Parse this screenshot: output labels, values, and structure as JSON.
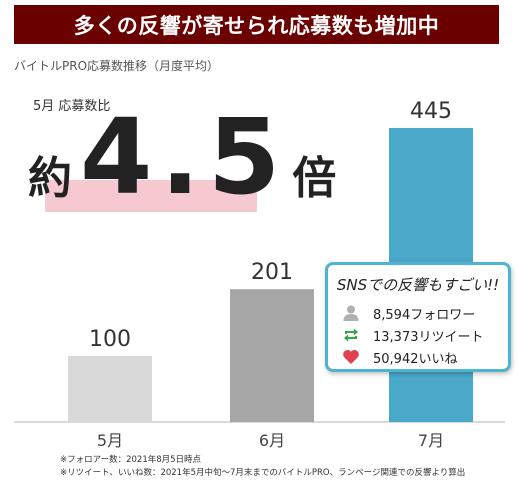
{
  "banner": {
    "title": "多くの反響が寄せられ応募数も増加中"
  },
  "subtitle": "バイトルPRO応募数推移（月度平均）",
  "comparison": {
    "label": "5月 応募数比",
    "prefix": "約",
    "value": "4.5",
    "suffix": "倍"
  },
  "sns": {
    "title": "SNSでの反響もすごい!!",
    "followers": "8,594フォロワー",
    "retweets": "13,373リツイート",
    "likes": "50,942いいね",
    "icons": [
      "person-icon",
      "retweet-icon",
      "heart-icon"
    ],
    "icon_colors": {
      "person": "#b0b0b0",
      "retweet": "#2eaa4a",
      "heart": "#e0404f"
    }
  },
  "chart_data": {
    "type": "bar",
    "categories": [
      "5月",
      "6月",
      "7月"
    ],
    "values": [
      100,
      201,
      445
    ],
    "value_labels": [
      "100",
      "201",
      "445"
    ],
    "ylim": [
      0,
      445
    ],
    "colors": [
      "#d9d9d9",
      "#a6a6a6",
      "#4aa8c9"
    ],
    "grid": false
  },
  "footnotes": [
    "※フォロアー数：2021年8月5日時点",
    "※リツイート、いいね数：2021年5月中旬～7月末までのバイトルPRO、ランページ関連での反響より算出"
  ]
}
